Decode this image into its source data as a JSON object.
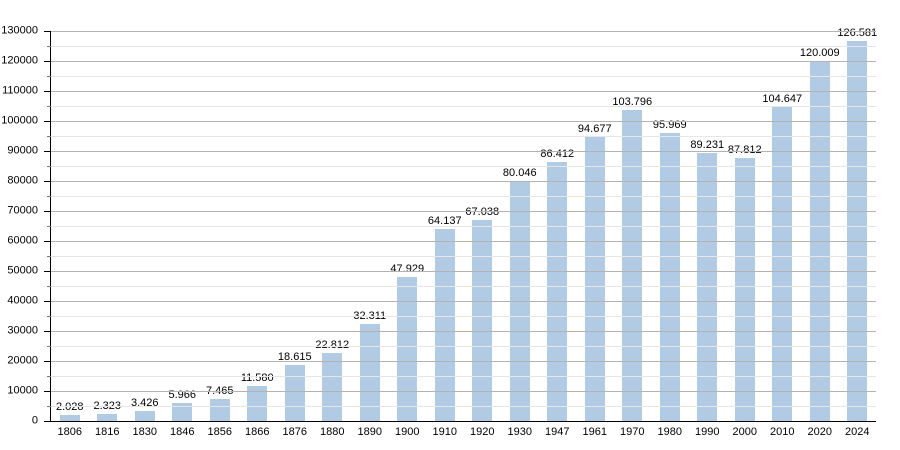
{
  "chart_data": {
    "type": "bar",
    "title": "",
    "xlabel": "",
    "ylabel": "",
    "categories": [
      "1806",
      "1816",
      "1830",
      "1846",
      "1856",
      "1866",
      "1876",
      "1880",
      "1890",
      "1900",
      "1910",
      "1920",
      "1930",
      "1947",
      "1961",
      "1970",
      "1980",
      "1990",
      "2000",
      "2010",
      "2020",
      "2024"
    ],
    "values": [
      2028,
      2323,
      3426,
      5966,
      7465,
      11580,
      18615,
      22812,
      32311,
      47929,
      64137,
      67038,
      80046,
      86412,
      94677,
      103796,
      95969,
      89231,
      87812,
      104647,
      120009,
      126581
    ],
    "value_labels": [
      "2.028",
      "2.323",
      "3.426",
      "5.966",
      "7.465",
      "11.580",
      "18.615",
      "22.812",
      "32.311",
      "47.929",
      "64.137",
      "67.038",
      "80.046",
      "86.412",
      "94.677",
      "103.796",
      "95.969",
      "89.231",
      "87.812",
      "104.647",
      "120.009",
      "126.581"
    ],
    "ylim": [
      0,
      130000
    ],
    "ytick_step": 10000,
    "yminor_step": 5000,
    "ytick_labels": [
      "0",
      "10000",
      "20000",
      "30000",
      "40000",
      "50000",
      "60000",
      "70000",
      "80000",
      "90000",
      "100000",
      "110000",
      "120000",
      "130000"
    ],
    "grid": "on",
    "legend": "none",
    "colors": {
      "bar_fill": "#b2cbe5",
      "grid_major": "#b3b3b3",
      "grid_minor": "#e6e6e6",
      "axis": "#000000",
      "text": "#000000"
    }
  }
}
